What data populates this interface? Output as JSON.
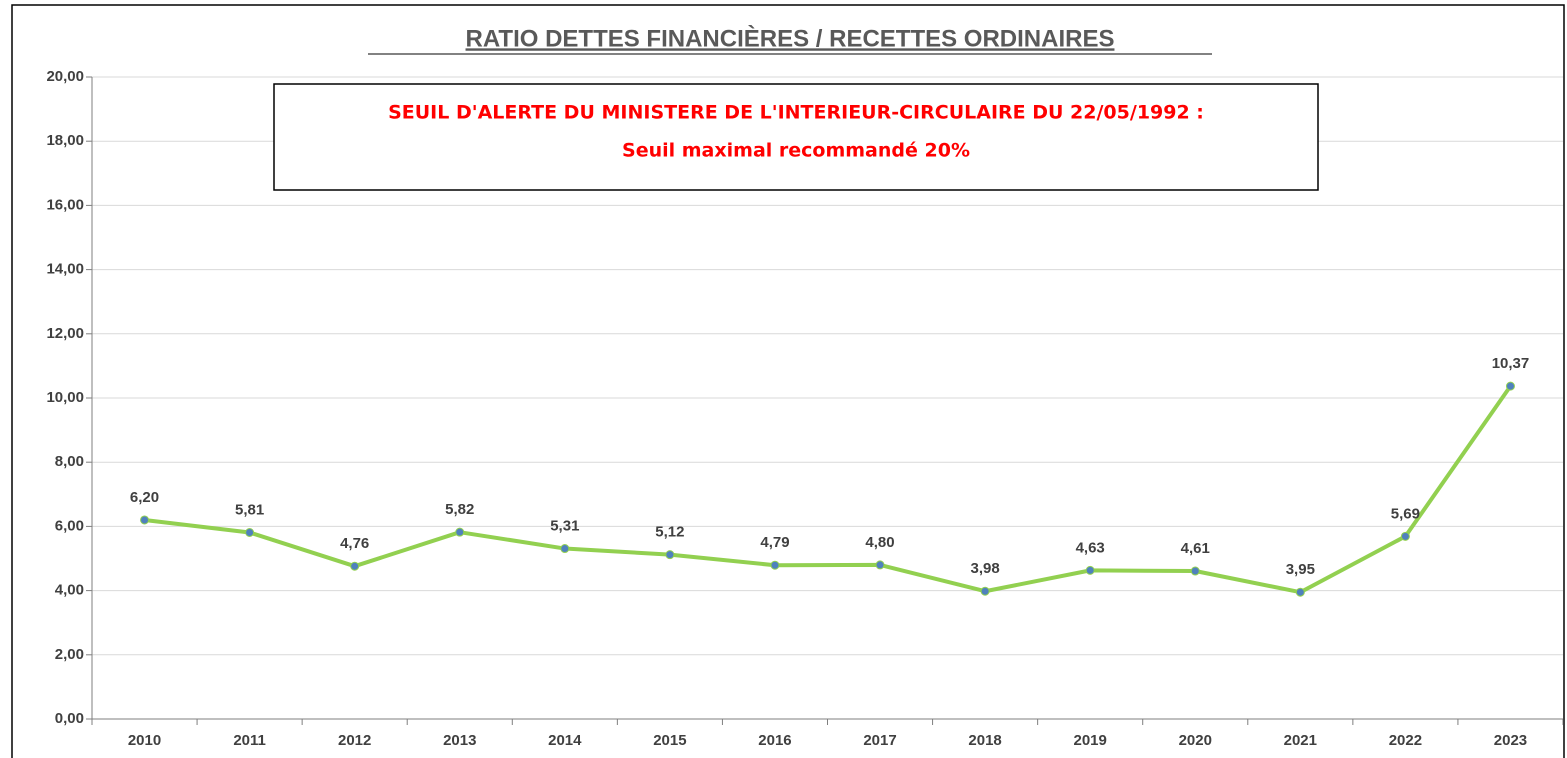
{
  "chart_data": {
    "type": "line",
    "title": "RATIO DETTES FINANCIÈRES  / RECETTES ORDINAIRES",
    "annotations": [
      "SEUIL D'ALERTE DU MINISTERE DE L'INTERIEUR-CIRCULAIRE DU  22/05/1992 :",
      "Seuil maximal recommandé 20%"
    ],
    "categories": [
      "2010",
      "2011",
      "2012",
      "2013",
      "2014",
      "2015",
      "2016",
      "2017",
      "2018",
      "2019",
      "2020",
      "2021",
      "2022",
      "2023"
    ],
    "values": [
      6.2,
      5.81,
      4.76,
      5.82,
      5.31,
      5.12,
      4.79,
      4.8,
      3.98,
      4.63,
      4.61,
      3.95,
      5.69,
      10.37
    ],
    "value_labels": [
      "6,20",
      "5,81",
      "4,76",
      "5,82",
      "5,31",
      "5,12",
      "4,79",
      "4,80",
      "3,98",
      "4,63",
      "4,61",
      "3,95",
      "5,69",
      "10,37"
    ],
    "color": "#92d050",
    "marker_color": "#4f81bd",
    "ylim": [
      0,
      20
    ],
    "yticks": [
      {
        "value": 0,
        "label": "0,00"
      },
      {
        "value": 2,
        "label": "2,00"
      },
      {
        "value": 4,
        "label": "4,00"
      },
      {
        "value": 6,
        "label": "6,00"
      },
      {
        "value": 8,
        "label": "8,00"
      },
      {
        "value": 10,
        "label": "10,00"
      },
      {
        "value": 12,
        "label": "12,00"
      },
      {
        "value": 14,
        "label": "14,00"
      },
      {
        "value": 16,
        "label": "16,00"
      },
      {
        "value": 18,
        "label": "18,00"
      },
      {
        "value": 20,
        "label": "20,00"
      }
    ],
    "grid": true
  }
}
